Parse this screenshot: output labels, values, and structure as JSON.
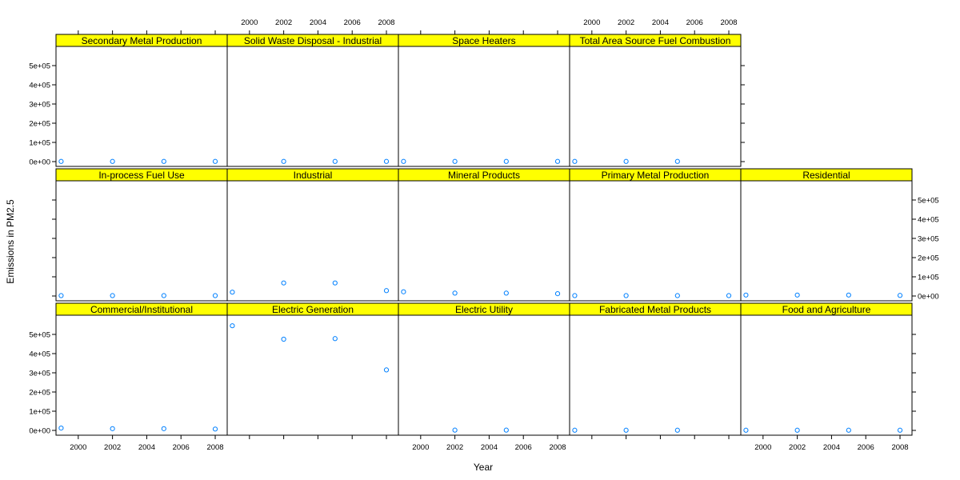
{
  "chart_data": {
    "type": "scatter",
    "xlabel": "Year",
    "ylabel": "Emissions in PM2.5",
    "x_ticks": [
      2000,
      2002,
      2004,
      2006,
      2008
    ],
    "y_ticks": [
      0,
      100000,
      200000,
      300000,
      400000,
      500000
    ],
    "y_tick_labels": [
      "0e+00",
      "1e+05",
      "2e+05",
      "3e+05",
      "4e+05",
      "5e+05"
    ],
    "xlim": [
      1998.7,
      2008.7
    ],
    "ylim": [
      -25000,
      600000
    ],
    "point_color": "#0080ff",
    "strip_color": "#ffff00",
    "panels": [
      {
        "name": "Commercial/Institutional",
        "x": [
          1999,
          2002,
          2005,
          2008
        ],
        "y": [
          12000,
          9000,
          9000,
          7000
        ]
      },
      {
        "name": "Electric Generation",
        "x": [
          1999,
          2002,
          2005,
          2008
        ],
        "y": [
          545000,
          475000,
          478000,
          315000
        ]
      },
      {
        "name": "Electric Utility",
        "x": [
          2002,
          2005
        ],
        "y": [
          1500,
          1500
        ]
      },
      {
        "name": "Fabricated Metal Products",
        "x": [
          1999,
          2002,
          2005
        ],
        "y": [
          1000,
          1000,
          1000
        ]
      },
      {
        "name": "Food and Agriculture",
        "x": [
          1999,
          2002,
          2005,
          2008
        ],
        "y": [
          1000,
          1000,
          1000,
          1000
        ]
      },
      {
        "name": "In-process Fuel Use",
        "x": [
          1999,
          2002,
          2005,
          2008
        ],
        "y": [
          2000,
          2000,
          2000,
          2000
        ]
      },
      {
        "name": "Industrial",
        "x": [
          1999,
          2002,
          2005,
          2008
        ],
        "y": [
          20000,
          68000,
          68000,
          28000
        ]
      },
      {
        "name": "Mineral Products",
        "x": [
          1999,
          2002,
          2005,
          2008
        ],
        "y": [
          22000,
          15000,
          15000,
          12000
        ]
      },
      {
        "name": "Primary Metal Production",
        "x": [
          1999,
          2002,
          2005,
          2008
        ],
        "y": [
          2000,
          2000,
          2000,
          2000
        ]
      },
      {
        "name": "Residential",
        "x": [
          1999,
          2002,
          2005,
          2008
        ],
        "y": [
          5000,
          5000,
          5000,
          3000
        ]
      },
      {
        "name": "Secondary Metal Production",
        "x": [
          1999,
          2002,
          2005,
          2008
        ],
        "y": [
          1000,
          1000,
          1000,
          1000
        ]
      },
      {
        "name": "Solid Waste Disposal - Industrial",
        "x": [
          2002,
          2005,
          2008
        ],
        "y": [
          1000,
          1000,
          1000
        ]
      },
      {
        "name": "Space Heaters",
        "x": [
          1999,
          2002,
          2005,
          2008
        ],
        "y": [
          1000,
          1000,
          1000,
          1000
        ]
      },
      {
        "name": "Total Area Source Fuel Combustion",
        "x": [
          1999,
          2002,
          2005
        ],
        "y": [
          1000,
          1000,
          1000
        ]
      }
    ]
  }
}
